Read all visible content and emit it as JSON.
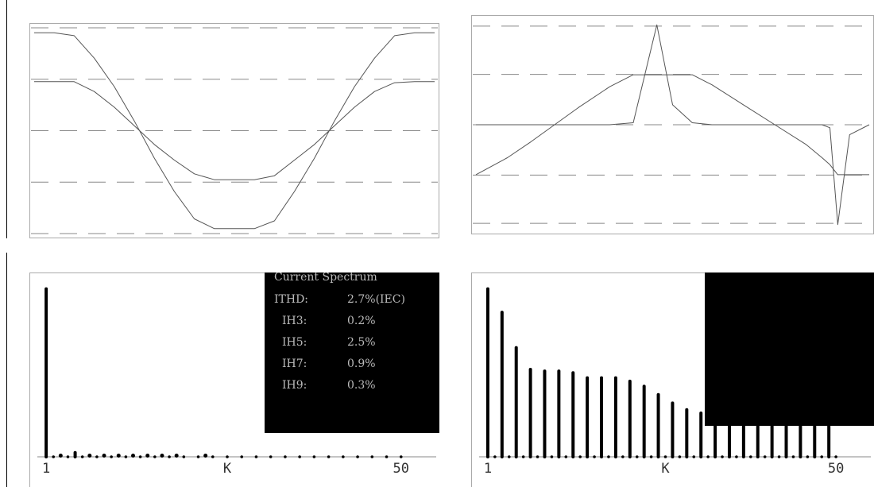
{
  "chart_data": [
    {
      "panel": "top-left",
      "type": "line",
      "grid": "dashed horizontal",
      "x": [
        0,
        0.05,
        0.1,
        0.15,
        0.2,
        0.25,
        0.3,
        0.35,
        0.4,
        0.45,
        0.5,
        0.55,
        0.6,
        0.65,
        0.7,
        0.75,
        0.8,
        0.85,
        0.9,
        0.95,
        1.0
      ],
      "xlim": [
        0,
        1
      ],
      "ylim": [
        -1.05,
        1.05
      ],
      "series": [
        {
          "values": [
            1.0,
            1.0,
            0.97,
            0.74,
            0.45,
            0.1,
            -0.28,
            -0.62,
            -0.9,
            -1.0,
            -1.0,
            -1.0,
            -0.92,
            -0.62,
            -0.28,
            0.1,
            0.45,
            0.74,
            0.97,
            1.0,
            1.0
          ]
        },
        {
          "values": [
            0.5,
            0.5,
            0.5,
            0.4,
            0.24,
            0.05,
            -0.14,
            -0.3,
            -0.44,
            -0.5,
            -0.5,
            -0.5,
            -0.46,
            -0.3,
            -0.14,
            0.05,
            0.24,
            0.4,
            0.49,
            0.5,
            0.5
          ]
        }
      ]
    },
    {
      "panel": "top-right",
      "type": "line",
      "grid": "dashed horizontal",
      "x": [
        0,
        0.08,
        0.14,
        0.2,
        0.26,
        0.34,
        0.4,
        0.46,
        0.5,
        0.55,
        0.6,
        0.68,
        0.76,
        0.84,
        0.88,
        0.9,
        0.92,
        0.95,
        1.0
      ],
      "xlim": [
        0,
        1
      ],
      "ylim": [
        -1.05,
        1.05
      ],
      "series": [
        {
          "values": [
            -0.5,
            -0.33,
            -0.17,
            0.0,
            0.17,
            0.38,
            0.5,
            0.5,
            0.5,
            0.5,
            0.4,
            0.2,
            0.0,
            -0.2,
            -0.33,
            -0.4,
            -0.5,
            -0.5,
            -0.5
          ]
        },
        {
          "values": [
            0.0,
            0.0,
            0.0,
            0.0,
            0.0,
            0.0,
            0.02,
            1.0,
            0.2,
            0.02,
            0.0,
            0.0,
            0.0,
            0.0,
            0.0,
            -0.03,
            -1.0,
            -0.1,
            0.0
          ]
        }
      ]
    },
    {
      "panel": "bottom-left",
      "type": "bar",
      "title": "Current Spectrum",
      "x": [
        1,
        3,
        5,
        7,
        9,
        11,
        13,
        15,
        17,
        19,
        23
      ],
      "values": [
        100,
        0.2,
        2.5,
        0.9,
        0.3,
        0.2,
        0.2,
        0.2,
        0.2,
        0.2,
        0.2
      ],
      "xlim": [
        0,
        52
      ],
      "ylim": [
        0,
        105
      ],
      "xticks": [
        {
          "label": "1",
          "x": 1
        },
        {
          "label": "K",
          "x": 26
        },
        {
          "label": "50",
          "x": 50
        }
      ],
      "legend_box": {
        "title": "Current Spectrum",
        "rows": [
          {
            "label": "ITHD:",
            "value": "2.7%(IEC)"
          },
          {
            "label": "IH3:",
            "value": "0.2%"
          },
          {
            "label": "IH5:",
            "value": "2.5%"
          },
          {
            "label": "IH7:",
            "value": "0.9%"
          },
          {
            "label": "IH9:",
            "value": "0.3%"
          }
        ]
      }
    },
    {
      "panel": "bottom-right",
      "type": "bar",
      "x": [
        1,
        3,
        5,
        7,
        9,
        11,
        13,
        15,
        17,
        19,
        21,
        23,
        25,
        27,
        29,
        31,
        33,
        35,
        37,
        39,
        41,
        43,
        45,
        47,
        49
      ],
      "values": [
        100,
        86,
        65,
        52,
        51,
        51,
        50,
        47,
        47,
        47,
        45,
        42,
        37,
        32,
        28,
        26,
        25,
        25,
        24,
        24,
        23,
        23,
        22,
        22,
        21
      ],
      "xlim": [
        0,
        52
      ],
      "ylim": [
        0,
        105
      ],
      "xticks": [
        {
          "label": "1",
          "x": 1
        },
        {
          "label": "K",
          "x": 26
        },
        {
          "label": "50",
          "x": 50
        }
      ]
    }
  ],
  "colors": {
    "background": "#ffffff",
    "trace": "#555555",
    "grid": "#888888",
    "frame": "#aaaaaa",
    "bar": "#000000",
    "box_bg": "#000000",
    "box_text": "#bbbbbb"
  }
}
